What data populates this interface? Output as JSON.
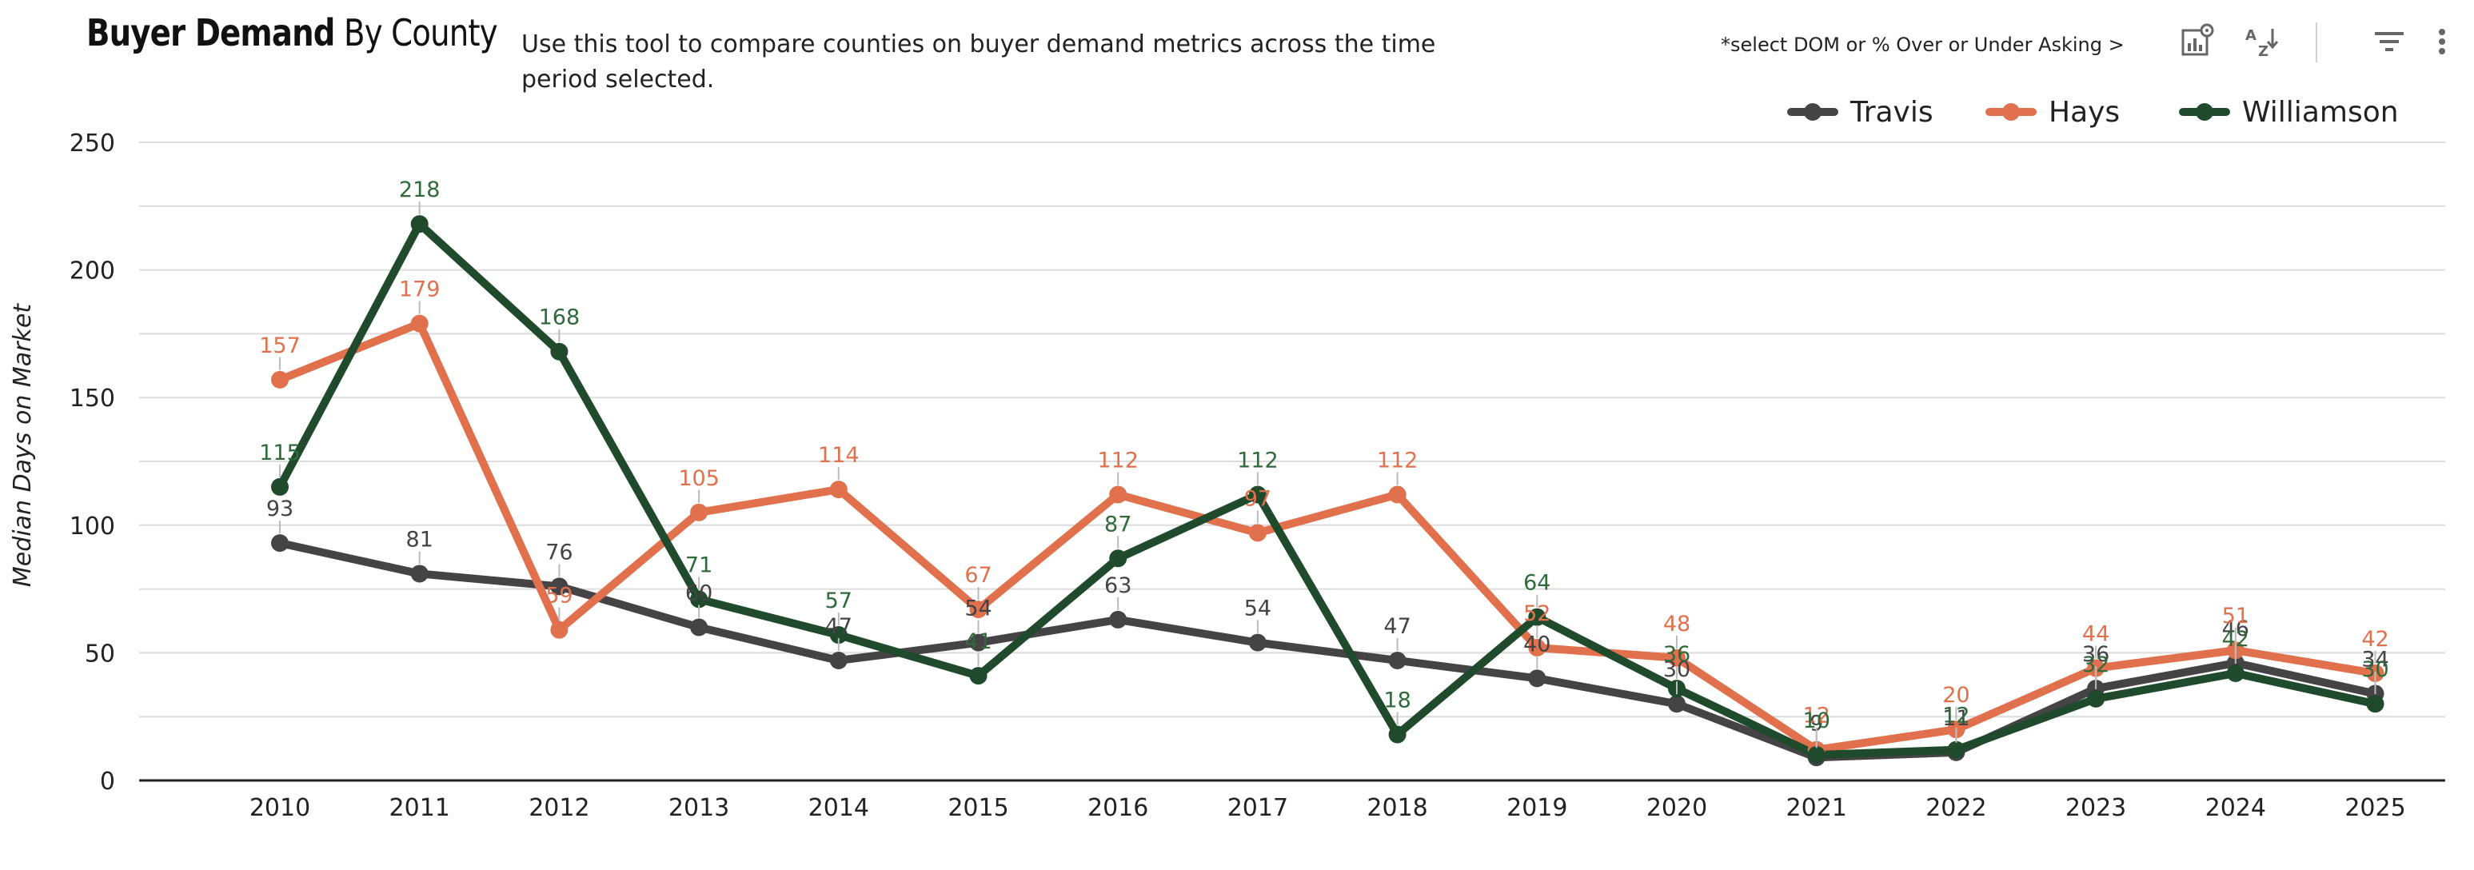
{
  "header": {
    "title_bold": "Buyer Demand",
    "title_rest": " By County",
    "description": "Use this tool to compare counties on buyer demand metrics across the time period selected.",
    "hint": "*select DOM or % Over or Under Asking >"
  },
  "toolbar": {
    "icons": [
      "chart-settings-icon",
      "sort-az-icon",
      "filter-icon",
      "more-vert-icon"
    ]
  },
  "colors": {
    "Travis": "#454345",
    "Hays": "#E0714C",
    "Williamson": "#1F4B2C",
    "grid": "#dcdcdc",
    "axis": "#222222"
  },
  "chart_data": {
    "type": "line",
    "title": "Buyer Demand By County",
    "xlabel": "",
    "ylabel": "Median Days on Market",
    "ylim": [
      0,
      250
    ],
    "yticks": [
      0,
      50,
      100,
      150,
      200,
      250
    ],
    "grid": true,
    "legend": "top-right",
    "categories": [
      "2010",
      "2011",
      "2012",
      "2013",
      "2014",
      "2015",
      "2016",
      "2017",
      "2018",
      "2019",
      "2020",
      "2021",
      "2022",
      "2023",
      "2024",
      "2025"
    ],
    "series": [
      {
        "name": "Travis",
        "values": [
          93,
          81,
          76,
          60,
          47,
          54,
          63,
          54,
          47,
          40,
          30,
          9,
          11,
          36,
          46,
          34
        ]
      },
      {
        "name": "Hays",
        "values": [
          157,
          179,
          59,
          105,
          114,
          67,
          112,
          97,
          112,
          52,
          48,
          12,
          20,
          44,
          51,
          42
        ]
      },
      {
        "name": "Williamson",
        "values": [
          115,
          218,
          168,
          71,
          57,
          41,
          87,
          112,
          18,
          64,
          36,
          10,
          12,
          32,
          42,
          30
        ]
      }
    ]
  }
}
